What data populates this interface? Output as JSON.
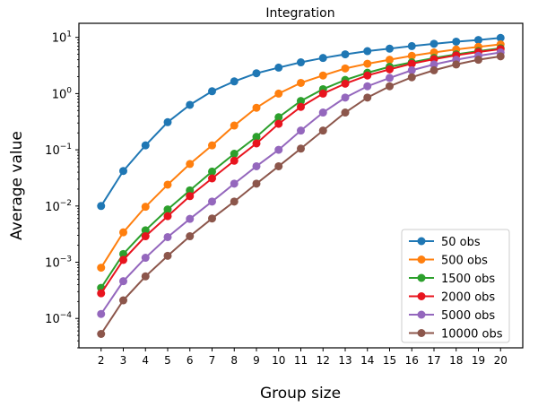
{
  "chart_data": {
    "type": "line",
    "title": "Integration",
    "xlabel": "Group size",
    "ylabel": "Average value",
    "yscale": "log",
    "xlim": [
      1.0,
      21.0
    ],
    "ylim": [
      3e-05,
      17.8
    ],
    "x": [
      2,
      3,
      4,
      5,
      6,
      7,
      8,
      9,
      10,
      11,
      12,
      13,
      14,
      15,
      16,
      17,
      18,
      19,
      20
    ],
    "x_tick_labels": [
      "2",
      "3",
      "4",
      "5",
      "6",
      "7",
      "8",
      "9",
      "10",
      "11",
      "12",
      "13",
      "14",
      "15",
      "16",
      "17",
      "18",
      "19",
      "20"
    ],
    "y_ticks": [
      {
        "value": 10,
        "base": "10",
        "exp": "1"
      },
      {
        "value": 1,
        "base": "10",
        "exp": "0"
      },
      {
        "value": 0.1,
        "base": "10",
        "exp": "−1"
      },
      {
        "value": 0.01,
        "base": "10",
        "exp": "−2"
      },
      {
        "value": 0.001,
        "base": "10",
        "exp": "−3"
      },
      {
        "value": 0.0001,
        "base": "10",
        "exp": "−4"
      }
    ],
    "grid": false,
    "legend_position": "lower-right",
    "series": [
      {
        "name": "50 obs",
        "color": "#1f77b4",
        "values": [
          0.01,
          0.042,
          0.12,
          0.31,
          0.63,
          1.1,
          1.65,
          2.3,
          2.9,
          3.6,
          4.3,
          5.0,
          5.7,
          6.3,
          7.0,
          7.7,
          8.4,
          9.0,
          9.8
        ]
      },
      {
        "name": "500 obs",
        "color": "#ff7f0e",
        "values": [
          0.0008,
          0.0034,
          0.0097,
          0.024,
          0.056,
          0.12,
          0.27,
          0.56,
          1.0,
          1.55,
          2.1,
          2.8,
          3.4,
          4.0,
          4.7,
          5.4,
          6.1,
          6.8,
          7.5
        ]
      },
      {
        "name": "1500 obs",
        "color": "#2ca02c",
        "values": [
          0.00035,
          0.0014,
          0.0037,
          0.0087,
          0.019,
          0.041,
          0.085,
          0.17,
          0.38,
          0.74,
          1.2,
          1.75,
          2.35,
          3.0,
          3.6,
          4.3,
          5.0,
          5.7,
          6.4
        ]
      },
      {
        "name": "2000 obs",
        "color": "#e8141e",
        "values": [
          0.00028,
          0.0011,
          0.0029,
          0.0066,
          0.015,
          0.031,
          0.064,
          0.13,
          0.29,
          0.58,
          1.0,
          1.5,
          2.1,
          2.7,
          3.4,
          4.1,
          4.8,
          5.5,
          6.2
        ]
      },
      {
        "name": "5000 obs",
        "color": "#9467bd",
        "values": [
          0.00012,
          0.00046,
          0.0012,
          0.0028,
          0.0059,
          0.012,
          0.025,
          0.051,
          0.1,
          0.22,
          0.46,
          0.85,
          1.35,
          1.9,
          2.6,
          3.3,
          4.0,
          4.7,
          5.4
        ]
      },
      {
        "name": "10000 obs",
        "color": "#8c564b",
        "values": [
          5.3e-05,
          0.00021,
          0.00056,
          0.0013,
          0.0029,
          0.006,
          0.012,
          0.025,
          0.051,
          0.105,
          0.22,
          0.46,
          0.85,
          1.35,
          1.95,
          2.6,
          3.3,
          4.0,
          4.6
        ]
      }
    ]
  }
}
